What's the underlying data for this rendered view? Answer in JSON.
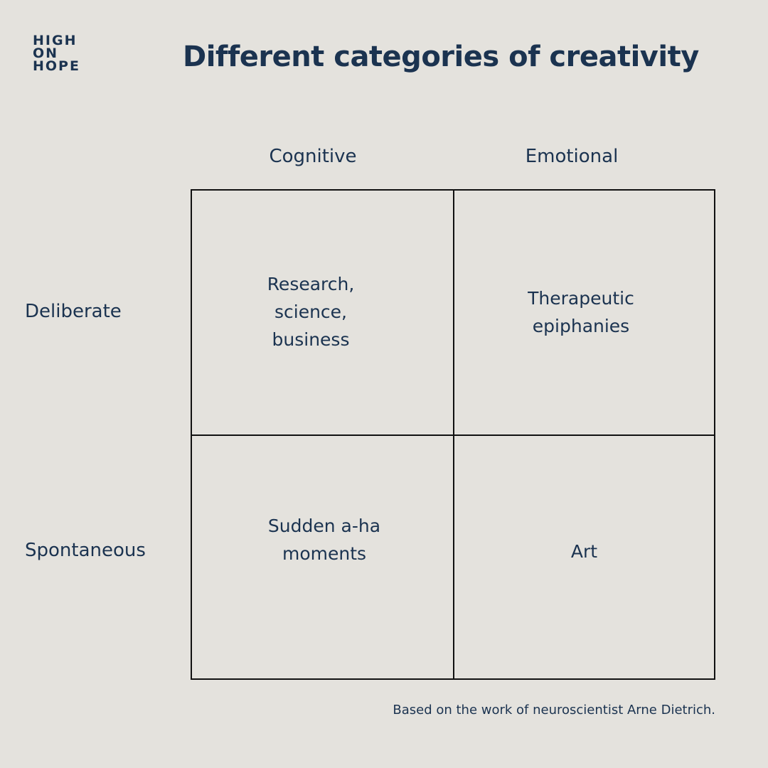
{
  "logo": {
    "lines": [
      "HIGH",
      "ON",
      "HOPE"
    ]
  },
  "title": "Different categories of creativity",
  "columns": [
    "Cognitive",
    "Emotional"
  ],
  "rows": [
    "Deliberate",
    "Spontaneous"
  ],
  "cells": {
    "deliberate_cognitive": "Research,\nscience,\nbusiness",
    "deliberate_emotional": "Therapeutic\nepiphanies",
    "spontaneous_cognitive": "Sudden a-ha\nmoments",
    "spontaneous_emotional": "Art"
  },
  "footnote": "Based on the work of neuroscientist Arne Dietrich.",
  "colors": {
    "background": "#e4e2dd",
    "text": "#1b3350",
    "grid_lines": "#111111"
  }
}
